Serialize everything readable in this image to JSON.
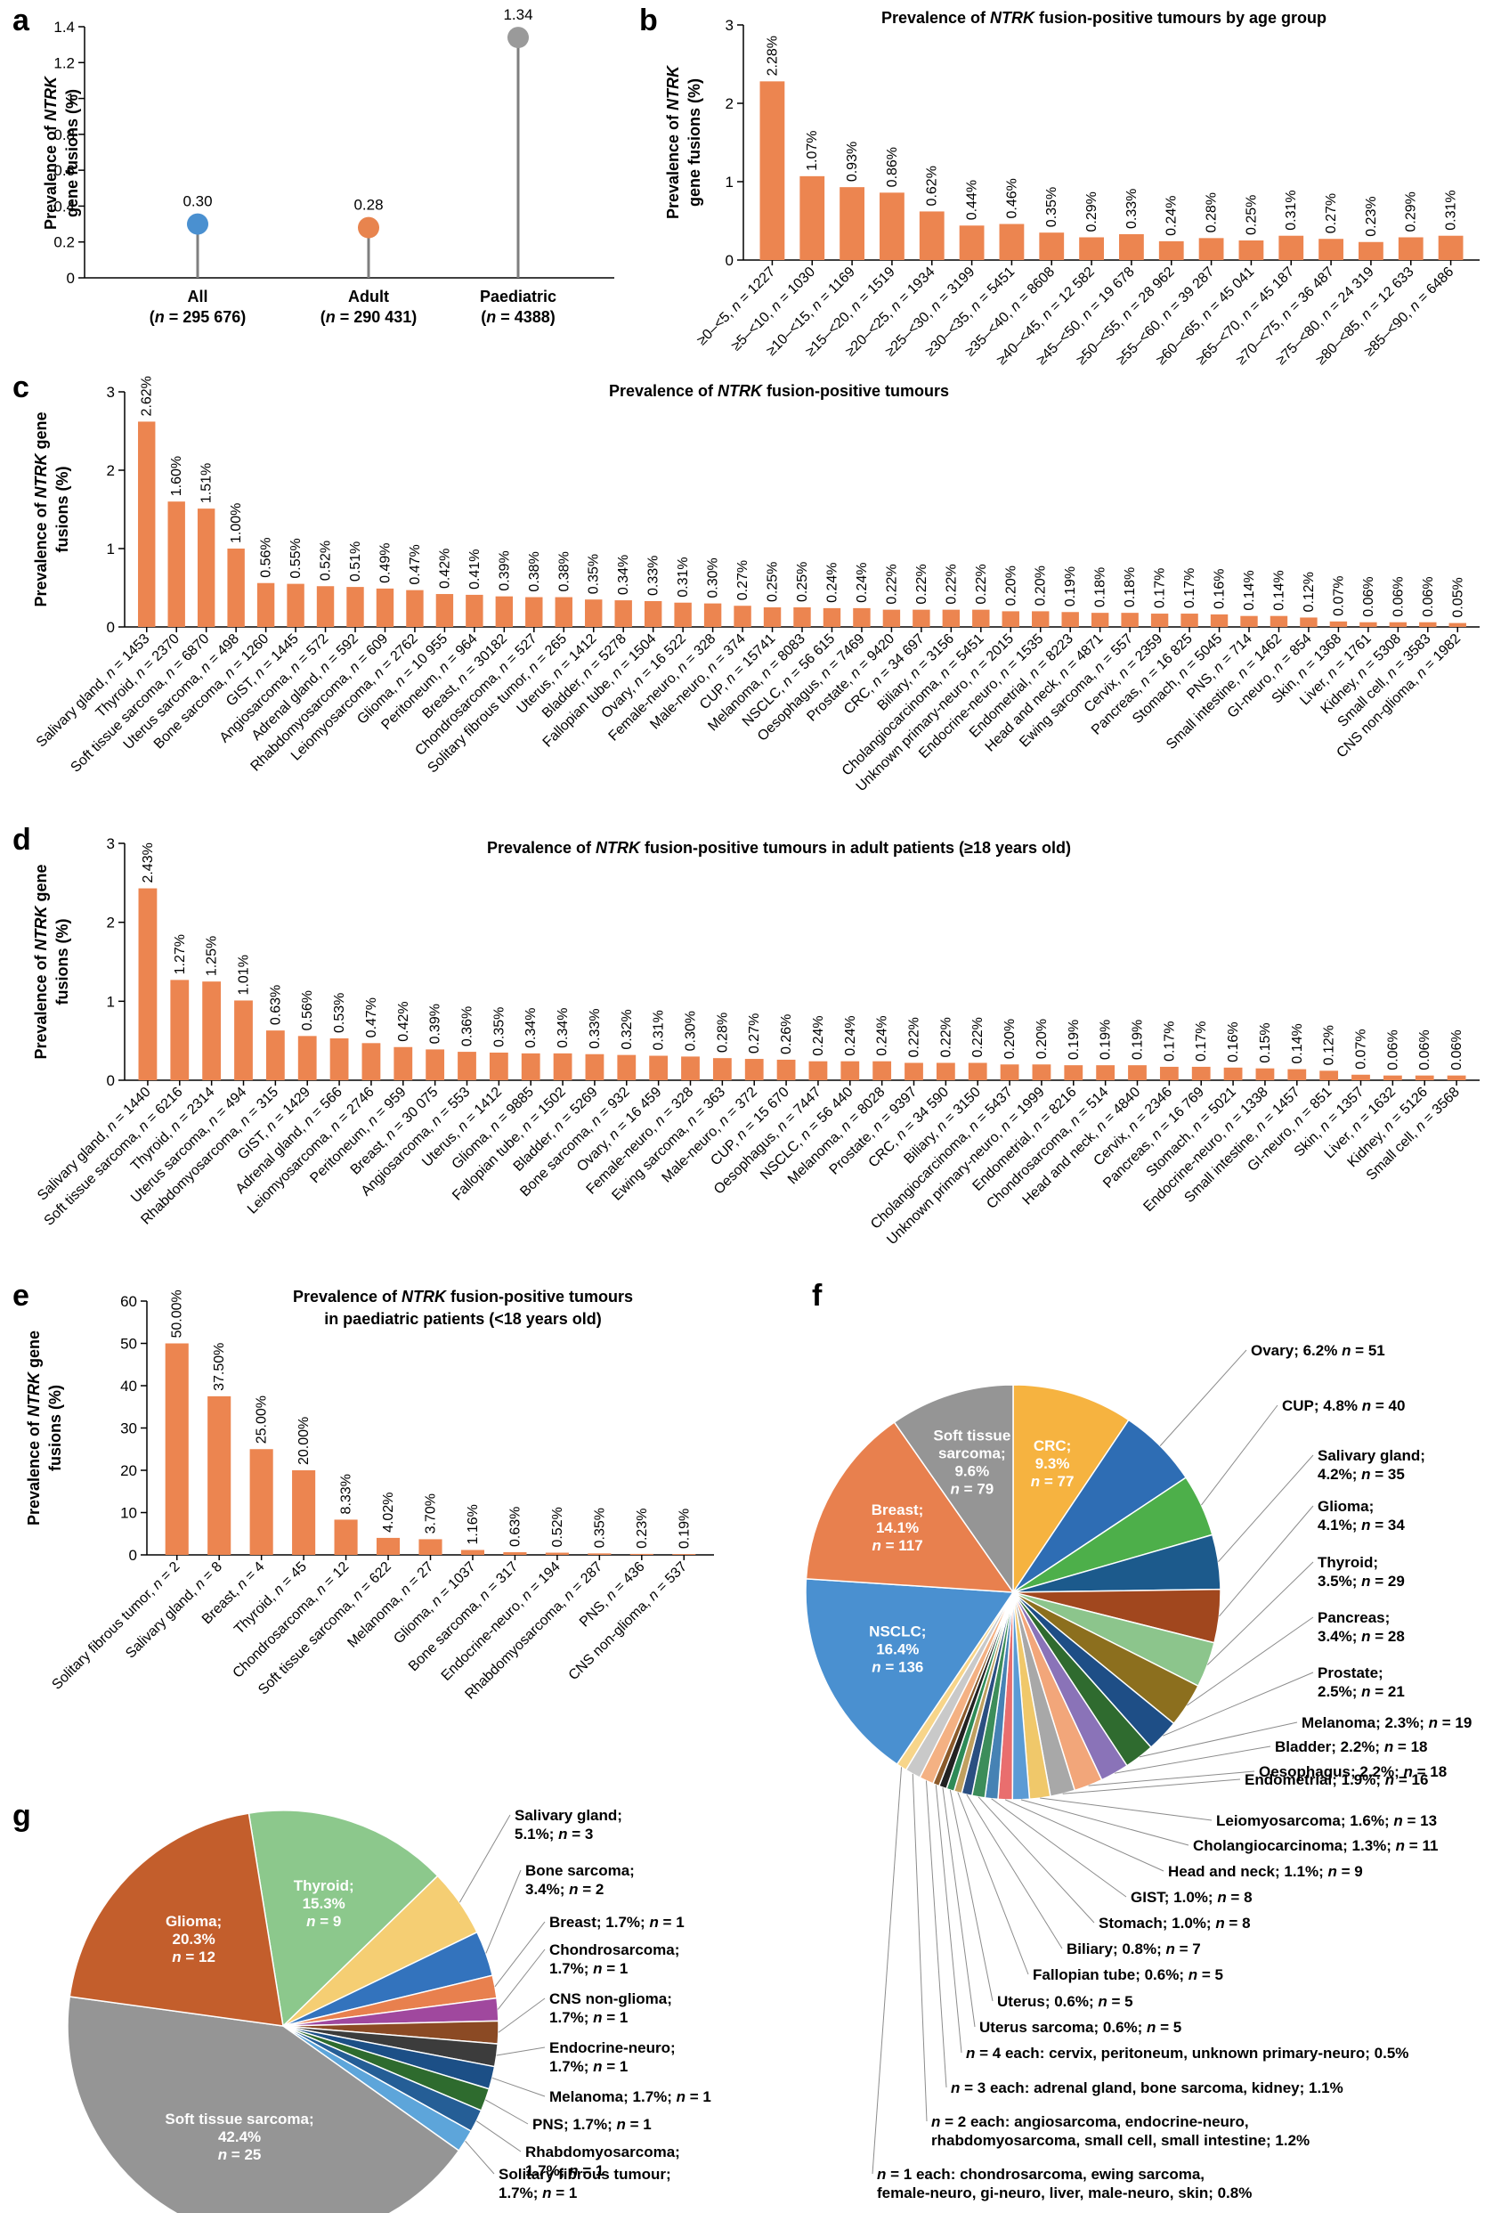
{
  "panels": {
    "a": "a",
    "b": "b",
    "c": "c",
    "d": "d",
    "e": "e",
    "f": "f",
    "g": "g"
  },
  "colors": {
    "bar": "#EC8550",
    "all": "#4A90D0",
    "adult": "#E8844E",
    "paed": "#9A9A9A",
    "stem": "#7F7F7F"
  },
  "chart_data": [
    {
      "id": "a",
      "type": "lollipop",
      "ylabel_pre": "Prevalence of ",
      "ylabel_it": "NTRK",
      "ylabel_line2": "gene fusions (%)",
      "ylim": [
        0,
        1.4
      ],
      "yticks": [
        "0",
        "0.2",
        "0.4",
        "0.6",
        "0.8",
        "1",
        "1.2",
        "1.4"
      ],
      "groups": [
        "All",
        "Adult",
        "Paediatric"
      ],
      "ns": [
        "(n = 295 676)",
        "(n = 290 431)",
        "(n = 4388)"
      ],
      "values": [
        0.3,
        0.28,
        1.34
      ],
      "value_labels": [
        "0.30",
        "0.28",
        "1.34"
      ],
      "colors": [
        "#4A90D0",
        "#E8844E",
        "#9A9A9A"
      ]
    },
    {
      "id": "b",
      "type": "bar",
      "title_pre": "Prevalence of ",
      "title_it": "NTRK",
      "title_post": " fusion-positive tumours by age group",
      "ylabel_pre": "Prevalence of ",
      "ylabel_it": "NTRK",
      "ylabel_line2": "gene fusions (%)",
      "ylim": [
        0,
        3
      ],
      "yticks": [
        "0",
        "1",
        "2",
        "3"
      ],
      "categories": [
        "≥0–<5, n = 1227",
        "≥5–<10, n = 1030",
        "≥10–<15, n = 1169",
        "≥15–<20, n = 1519",
        "≥20–<25, n = 1934",
        "≥25–<30, n = 3199",
        "≥30–<35, n = 5451",
        "≥35–<40, n = 8608",
        "≥40–<45, n = 12 582",
        "≥45–<50, n = 19 678",
        "≥50–<55, n = 28 962",
        "≥55–<60, n = 39 287",
        "≥60–<65, n = 45 041",
        "≥65–<70, n = 45 187",
        "≥70–<75, n = 36 487",
        "≥75–<80, n = 24 319",
        "≥80–<85, n = 12 633",
        "≥85–<90, n = 6486"
      ],
      "values": [
        2.28,
        1.07,
        0.93,
        0.86,
        0.62,
        0.44,
        0.46,
        0.35,
        0.29,
        0.33,
        0.24,
        0.28,
        0.25,
        0.31,
        0.27,
        0.23,
        0.29,
        0.31
      ],
      "labels": [
        "2.28%",
        "1.07%",
        "0.93%",
        "0.86%",
        "0.62%",
        "0.44%",
        "0.46%",
        "0.35%",
        "0.29%",
        "0.33%",
        "0.24%",
        "0.28%",
        "0.25%",
        "0.31%",
        "0.27%",
        "0.23%",
        "0.29%",
        "0.31%"
      ]
    },
    {
      "id": "c",
      "type": "bar",
      "title_pre": "Prevalence of ",
      "title_it": "NTRK",
      "title_post": " fusion-positive tumours",
      "ylabel_pre": "Prevalence of ",
      "ylabel_it": "NTRK",
      "ylabel_post": " gene",
      "ylabel_line2": "fusions (%)",
      "ylim": [
        0,
        3
      ],
      "yticks": [
        "0",
        "1",
        "2",
        "3"
      ],
      "categories": [
        "Salivary gland, n = 1453",
        "Thyroid, n = 2370",
        "Soft tissue sarcoma, n = 6870",
        "Uterus sarcoma, n = 498",
        "Bone sarcoma, n = 1260",
        "GIST, n = 1445",
        "Angiosarcoma, n = 572",
        "Adrenal gland, n = 592",
        "Rhabdomyosarcoma, n = 609",
        "Leiomyosarcoma, n = 2762",
        "Glioma, n = 10 955",
        "Peritoneum, n = 964",
        "Breast, n = 30182",
        "Chondrosarcoma, n = 527",
        "Solitary fibrous tumor, n = 265",
        "Uterus, n = 1412",
        "Bladder, n = 5278",
        "Fallopian tube, n = 1504",
        "Ovary, n = 16 522",
        "Female-neuro, n = 328",
        "Male-neuro, n = 374",
        "CUP, n = 15741",
        "Melanoma, n = 8083",
        "NSCLC, n = 56 615",
        "Oesophagus, n = 7469",
        "Prostate, n = 9420",
        "CRC, n = 34 697",
        "Biliary, n = 3156",
        "Cholangiocarcinoma, n = 5451",
        "Unknown primary-neuro, n = 2015",
        "Endocrine-neuro, n = 1535",
        "Endometrial, n = 8223",
        "Head and neck, n = 4871",
        "Ewing sarcoma, n = 557",
        "Cervix, n = 2359",
        "Pancreas, n = 16 825",
        "Stomach, n = 5045",
        "PNS, n = 714",
        "Small intestine, n = 1462",
        "GI-neuro, n = 854",
        "Skin, n = 1368",
        "Liver, n = 1761",
        "Kidney, n = 5308",
        "Small cell, n = 3583",
        "CNS non-glioma, n = 1982"
      ],
      "values": [
        2.62,
        1.6,
        1.51,
        1.0,
        0.56,
        0.55,
        0.52,
        0.51,
        0.49,
        0.47,
        0.42,
        0.41,
        0.39,
        0.38,
        0.38,
        0.35,
        0.34,
        0.33,
        0.31,
        0.3,
        0.27,
        0.25,
        0.25,
        0.24,
        0.24,
        0.22,
        0.22,
        0.22,
        0.22,
        0.2,
        0.2,
        0.19,
        0.18,
        0.18,
        0.17,
        0.17,
        0.16,
        0.14,
        0.14,
        0.12,
        0.07,
        0.06,
        0.06,
        0.06,
        0.05
      ],
      "labels": [
        "2.62%",
        "1.60%",
        "1.51%",
        "1.00%",
        "0.56%",
        "0.55%",
        "0.52%",
        "0.51%",
        "0.49%",
        "0.47%",
        "0.42%",
        "0.41%",
        "0.39%",
        "0.38%",
        "0.38%",
        "0.35%",
        "0.34%",
        "0.33%",
        "0.31%",
        "0.30%",
        "0.27%",
        "0.25%",
        "0.25%",
        "0.24%",
        "0.24%",
        "0.22%",
        "0.22%",
        "0.22%",
        "0.22%",
        "0.20%",
        "0.20%",
        "0.19%",
        "0.18%",
        "0.18%",
        "0.17%",
        "0.17%",
        "0.16%",
        "0.14%",
        "0.14%",
        "0.12%",
        "0.07%",
        "0.06%",
        "0.06%",
        "0.06%",
        "0.05%"
      ]
    },
    {
      "id": "d",
      "type": "bar",
      "title_pre": "Prevalence of ",
      "title_it": "NTRK",
      "title_post": " fusion-positive tumours in adult patients (≥18 years old)",
      "ylabel_pre": "Prevalence of ",
      "ylabel_it": "NTRK",
      "ylabel_post": " gene",
      "ylabel_line2": "fusions (%)",
      "ylim": [
        0,
        3
      ],
      "yticks": [
        "0",
        "1",
        "2",
        "3"
      ],
      "categories": [
        "Salivary gland, n = 1440",
        "Soft tissue sarcoma, n = 6216",
        "Thyroid, n = 2314",
        "Uterus sarcoma, n = 494",
        "Rhabdomyosarcoma, n = 315",
        "GIST, n = 1429",
        "Adrenal gland, n = 566",
        "Leiomyosarcoma, n = 2746",
        "Peritoneum, n = 959",
        "Breast, n = 30 075",
        "Angiosarcoma, n = 553",
        "Uterus, n = 1412",
        "Glioma, n = 9885",
        "Fallopian tube, n = 1502",
        "Bladder, n = 5269",
        "Bone sarcoma, n = 932",
        "Ovary, n = 16 459",
        "Female-neuro, n = 328",
        "Ewing sarcoma, n = 363",
        "Male-neuro, n = 372",
        "CUP, n = 15 670",
        "Oesophagus, n = 7447",
        "NSCLC, n = 56 440",
        "Melanoma, n = 8028",
        "Prostate, n = 9397",
        "CRC, n = 34 590",
        "Biliary, n = 3150",
        "Cholangiocarcinoma, n = 5437",
        "Unknown primary-neuro, n = 1999",
        "Endometrial, n = 8216",
        "Chondrosarcoma, n = 514",
        "Head and neck, n = 4840",
        "Cervix, n = 2346",
        "Pancreas, n = 16 769",
        "Stomach, n = 5021",
        "Endocrine-neuro, n = 1338",
        "Small intestine, n = 1457",
        "GI-neuro, n = 851",
        "Skin, n = 1357",
        "Liver, n = 1632",
        "Kidney, n = 5126",
        "Small cell, n = 3568"
      ],
      "values": [
        2.43,
        1.27,
        1.25,
        1.01,
        0.63,
        0.56,
        0.53,
        0.47,
        0.42,
        0.39,
        0.36,
        0.35,
        0.34,
        0.34,
        0.33,
        0.32,
        0.31,
        0.3,
        0.28,
        0.27,
        0.26,
        0.24,
        0.24,
        0.24,
        0.22,
        0.22,
        0.22,
        0.2,
        0.2,
        0.19,
        0.19,
        0.19,
        0.17,
        0.17,
        0.16,
        0.15,
        0.14,
        0.12,
        0.07,
        0.06,
        0.06,
        0.06
      ],
      "labels": [
        "2.43%",
        "1.27%",
        "1.25%",
        "1.01%",
        "0.63%",
        "0.56%",
        "0.53%",
        "0.47%",
        "0.42%",
        "0.39%",
        "0.36%",
        "0.35%",
        "0.34%",
        "0.34%",
        "0.33%",
        "0.32%",
        "0.31%",
        "0.30%",
        "0.28%",
        "0.27%",
        "0.26%",
        "0.24%",
        "0.24%",
        "0.24%",
        "0.22%",
        "0.22%",
        "0.22%",
        "0.20%",
        "0.20%",
        "0.19%",
        "0.19%",
        "0.19%",
        "0.17%",
        "0.17%",
        "0.16%",
        "0.15%",
        "0.14%",
        "0.12%",
        "0.07%",
        "0.06%",
        "0.06%",
        "0.06%"
      ]
    },
    {
      "id": "e",
      "type": "bar",
      "title_pre": "Prevalence of ",
      "title_it": "NTRK",
      "title_post": " fusion-positive tumours",
      "title_line2": "in paediatric patients (<18 years old)",
      "ylabel_pre": "Prevalence of ",
      "ylabel_it": "NTRK",
      "ylabel_post": " gene",
      "ylabel_line2": "fusions (%)",
      "ylim": [
        0,
        60
      ],
      "yticks": [
        "0",
        "10",
        "20",
        "30",
        "40",
        "50",
        "60"
      ],
      "categories": [
        "Solitary fibrous tumor, n = 2",
        "Salivary gland, n = 8",
        "Breast, n = 4",
        "Thyroid, n = 45",
        "Chondrosarcoma, n = 12",
        "Soft tissue sarcoma, n = 622",
        "Melanoma, n = 27",
        "Glioma, n = 1037",
        "Bone sarcoma, n = 317",
        "Endocrine-neuro, n = 194",
        "Rhabdomyosarcoma, n = 287",
        "PNS, n = 436",
        "CNS non-glioma, n = 537"
      ],
      "values": [
        50.0,
        37.5,
        25.0,
        20.0,
        8.33,
        4.02,
        3.7,
        1.16,
        0.63,
        0.52,
        0.35,
        0.23,
        0.19
      ],
      "labels": [
        "50.00%",
        "37.50%",
        "25.00%",
        "20.00%",
        "8.33%",
        "4.02%",
        "3.70%",
        "1.16%",
        "0.63%",
        "0.52%",
        "0.35%",
        "0.23%",
        "0.19%"
      ]
    },
    {
      "id": "f",
      "type": "pie",
      "slices": [
        {
          "name": "CRC",
          "pct": 9.3,
          "n": 77,
          "color": "#F6B340",
          "inside": true,
          "text": [
            "CRC;",
            "9.3%",
            "n = 77"
          ]
        },
        {
          "name": "Ovary",
          "pct": 6.2,
          "n": 51,
          "color": "#2E6DB4",
          "text": [
            "Ovary; 6.2% n = 51"
          ]
        },
        {
          "name": "CUP",
          "pct": 4.8,
          "n": 40,
          "color": "#4DAF4A",
          "text": [
            "CUP; 4.8% n = 40"
          ]
        },
        {
          "name": "Salivary gland",
          "pct": 4.2,
          "n": 35,
          "color": "#1C5A8C",
          "text": [
            "Salivary gland;",
            "4.2%; n = 35"
          ]
        },
        {
          "name": "Glioma",
          "pct": 4.1,
          "n": 34,
          "color": "#A1471E",
          "text": [
            "Glioma;",
            "4.1%; n = 34"
          ]
        },
        {
          "name": "Thyroid",
          "pct": 3.5,
          "n": 29,
          "color": "#8CC58C",
          "text": [
            "Thyroid;",
            "3.5%; n = 29"
          ]
        },
        {
          "name": "Pancreas",
          "pct": 3.4,
          "n": 28,
          "color": "#8C6F1E",
          "text": [
            "Pancreas;",
            "3.4%; n = 28"
          ]
        },
        {
          "name": "Prostate",
          "pct": 2.5,
          "n": 21,
          "color": "#1E4E86",
          "text": [
            "Prostate;",
            "2.5%; n = 21"
          ]
        },
        {
          "name": "Melanoma",
          "pct": 2.3,
          "n": 19,
          "color": "#2F6B2F",
          "text": [
            "Melanoma; 2.3%; n = 19"
          ]
        },
        {
          "name": "Bladder",
          "pct": 2.2,
          "n": 18,
          "color": "#8A73B8",
          "text": [
            "Bladder; 2.2%; n = 18"
          ]
        },
        {
          "name": "Oesophagus",
          "pct": 2.2,
          "n": 18,
          "color": "#F2A67A",
          "text": [
            "Oesophagus; 2.2%; n = 18"
          ]
        },
        {
          "name": "Endometrial",
          "pct": 1.9,
          "n": 16,
          "color": "#A8A8A8",
          "text": [
            "Endometrial; 1.9%; n = 16"
          ]
        },
        {
          "name": "Leiomyosarcoma",
          "pct": 1.6,
          "n": 13,
          "color": "#F0C86A",
          "text": [
            "Leiomyosarcoma; 1.6%; n = 13"
          ]
        },
        {
          "name": "Cholangiocarcinoma",
          "pct": 1.3,
          "n": 11,
          "color": "#5B9BD5",
          "text": [
            "Cholangiocarcinoma; 1.3%; n = 11"
          ]
        },
        {
          "name": "Head and neck",
          "pct": 1.1,
          "n": 9,
          "color": "#E96E6E",
          "text": [
            "Head and neck; 1.1%; n = 9"
          ]
        },
        {
          "name": "GIST",
          "pct": 1.0,
          "n": 8,
          "color": "#4682B4",
          "text": [
            "GIST; 1.0%; n = 8"
          ]
        },
        {
          "name": "Stomach",
          "pct": 1.0,
          "n": 8,
          "color": "#3C8D5A",
          "text": [
            "Stomach; 1.0%; n = 8"
          ]
        },
        {
          "name": "Biliary",
          "pct": 0.8,
          "n": 7,
          "color": "#2B4F81",
          "text": [
            "Biliary; 0.8%; n = 7"
          ]
        },
        {
          "name": "Fallopian tube",
          "pct": 0.6,
          "n": 5,
          "color": "#C0A060",
          "text": [
            "Fallopian tube; 0.6%; n = 5"
          ]
        },
        {
          "name": "Uterus",
          "pct": 0.6,
          "n": 5,
          "color": "#2E8B57",
          "text": [
            "Uterus; 0.6%; n = 5"
          ]
        },
        {
          "name": "Uterus sarcoma",
          "pct": 0.6,
          "n": 5,
          "color": "#222222",
          "text": [
            "Uterus sarcoma; 0.6%; n = 5"
          ]
        },
        {
          "name": "n = 4 each",
          "pct": 0.5,
          "color": "#8B5A2B",
          "text": [
            "n = 4 each: cervix, peritoneum, unknown primary-neuro; 0.5%"
          ]
        },
        {
          "name": "n = 3 each",
          "pct": 1.1,
          "color": "#F4B183",
          "text": [
            "n = 3 each: adrenal gland, bone sarcoma, kidney; 1.1%"
          ]
        },
        {
          "name": "n = 2 each",
          "pct": 1.2,
          "color": "#C9C9C9",
          "text": [
            "n = 2 each: angiosarcoma, endocrine-neuro,",
            "rhabdomyosarcoma, small cell, small intestine; 1.2%"
          ]
        },
        {
          "name": "n = 1 each",
          "pct": 0.8,
          "color": "#F7D58A",
          "text": [
            "n = 1 each: chondrosarcoma, ewing sarcoma,",
            "female-neuro, gi-neuro, liver, male-neuro, skin; 0.8%"
          ]
        },
        {
          "name": "NSCLC",
          "pct": 16.4,
          "n": 136,
          "color": "#4A90D0",
          "inside": true,
          "text": [
            "NSCLC;",
            "16.4%",
            "n = 136"
          ]
        },
        {
          "name": "Breast",
          "pct": 14.1,
          "n": 117,
          "color": "#E8804E",
          "inside": true,
          "text": [
            "Breast;",
            "14.1%",
            "n = 117"
          ]
        },
        {
          "name": "Soft tissue sarcoma",
          "pct": 9.6,
          "n": 79,
          "color": "#959595",
          "inside": true,
          "text": [
            "Soft tissue",
            "sarcoma;",
            "9.6%",
            "n = 79"
          ]
        }
      ]
    },
    {
      "id": "g",
      "type": "pie",
      "slices": [
        {
          "name": "Thyroid",
          "pct": 15.3,
          "n": 9,
          "color": "#8CC88C",
          "inside": true,
          "text": [
            "Thyroid;",
            "15.3%",
            "n = 9"
          ]
        },
        {
          "name": "Salivary gland",
          "pct": 5.1,
          "n": 3,
          "color": "#F5CE73",
          "text": [
            "Salivary gland;",
            "5.1%; n = 3"
          ]
        },
        {
          "name": "Bone sarcoma",
          "pct": 3.4,
          "n": 2,
          "color": "#3373BD",
          "text": [
            "Bone sarcoma;",
            "3.4%; n = 2"
          ]
        },
        {
          "name": "Breast",
          "pct": 1.7,
          "n": 1,
          "color": "#E8804E",
          "text": [
            "Breast; 1.7%; n = 1"
          ]
        },
        {
          "name": "Chondrosarcoma",
          "pct": 1.7,
          "n": 1,
          "color": "#A0489E",
          "text": [
            "Chondrosarcoma;",
            "1.7%; n = 1"
          ]
        },
        {
          "name": "CNS non-glioma",
          "pct": 1.7,
          "n": 1,
          "color": "#8B4A24",
          "text": [
            "CNS non-glioma;",
            "1.7%; n = 1"
          ]
        },
        {
          "name": "Endocrine-neuro",
          "pct": 1.7,
          "n": 1,
          "color": "#3C3C3C",
          "text": [
            "Endocrine-neuro;",
            "1.7%; n = 1"
          ]
        },
        {
          "name": "Melanoma",
          "pct": 1.7,
          "n": 1,
          "color": "#1C4F86",
          "text": [
            "Melanoma; 1.7%; n = 1"
          ]
        },
        {
          "name": "PNS",
          "pct": 1.7,
          "n": 1,
          "color": "#2E6B2E",
          "text": [
            "PNS; 1.7%; n = 1"
          ]
        },
        {
          "name": "Rhabdomyosarcoma",
          "pct": 1.7,
          "n": 1,
          "color": "#255E96",
          "text": [
            "Rhabdomyosarcoma;",
            "1.7%; n = 1"
          ]
        },
        {
          "name": "Solitary fibrous tumour",
          "pct": 1.7,
          "n": 1,
          "color": "#5DA5DA",
          "text": [
            "Solitary fibrous tumour;",
            "1.7%; n = 1"
          ]
        },
        {
          "name": "Soft tissue sarcoma",
          "pct": 42.4,
          "n": 25,
          "color": "#959595",
          "inside": true,
          "text": [
            "Soft tissue sarcoma;",
            "42.4%",
            "n = 25"
          ]
        },
        {
          "name": "Glioma",
          "pct": 20.3,
          "n": 12,
          "color": "#C35E2C",
          "inside": true,
          "text": [
            "Glioma;",
            "20.3%",
            "n = 12"
          ]
        }
      ]
    }
  ]
}
